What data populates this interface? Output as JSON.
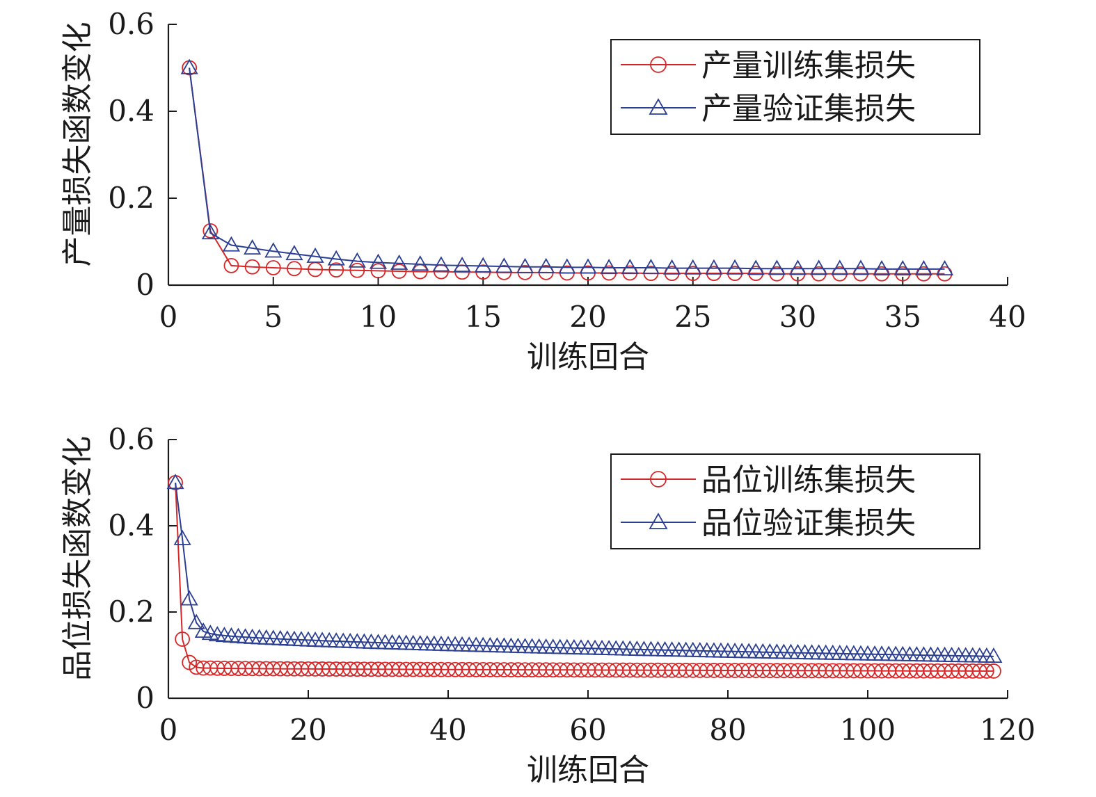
{
  "chart_data": [
    {
      "type": "line",
      "xlabel": "训练回合",
      "ylabel": "产量损失函数变化",
      "xlim": [
        0,
        40
      ],
      "ylim": [
        0,
        0.6
      ],
      "xticks": [
        0,
        5,
        10,
        15,
        20,
        25,
        30,
        35,
        40
      ],
      "yticks": [
        0,
        0.2,
        0.4,
        0.6
      ],
      "ytick_labels": [
        "0",
        "0.2",
        "0.4",
        "0.6"
      ],
      "grid": false,
      "legend_position": "top-right",
      "series": [
        {
          "name": "产量训练集损失",
          "color": "#d62728",
          "marker": "circle",
          "x": [
            1,
            2,
            3,
            4,
            5,
            6,
            7,
            8,
            9,
            10,
            11,
            12,
            13,
            14,
            15,
            16,
            17,
            18,
            19,
            20,
            21,
            22,
            23,
            24,
            25,
            26,
            27,
            28,
            29,
            30,
            31,
            32,
            33,
            34,
            35,
            36,
            37
          ],
          "y": [
            0.5,
            0.125,
            0.045,
            0.042,
            0.04,
            0.038,
            0.036,
            0.035,
            0.034,
            0.033,
            0.032,
            0.031,
            0.031,
            0.03,
            0.03,
            0.029,
            0.029,
            0.029,
            0.028,
            0.028,
            0.028,
            0.028,
            0.027,
            0.027,
            0.027,
            0.027,
            0.027,
            0.027,
            0.026,
            0.026,
            0.026,
            0.026,
            0.026,
            0.026,
            0.026,
            0.026,
            0.026
          ]
        },
        {
          "name": "产量验证集损失",
          "color": "#2b3f93",
          "marker": "triangle",
          "x": [
            1,
            2,
            3,
            4,
            5,
            6,
            7,
            8,
            9,
            10,
            11,
            12,
            13,
            14,
            15,
            16,
            17,
            18,
            19,
            20,
            21,
            22,
            23,
            24,
            25,
            26,
            27,
            28,
            29,
            30,
            31,
            32,
            33,
            34,
            35,
            36,
            37
          ],
          "y": [
            0.5,
            0.12,
            0.092,
            0.085,
            0.078,
            0.072,
            0.066,
            0.06,
            0.055,
            0.052,
            0.05,
            0.048,
            0.046,
            0.045,
            0.044,
            0.043,
            0.042,
            0.042,
            0.041,
            0.041,
            0.04,
            0.04,
            0.04,
            0.039,
            0.039,
            0.039,
            0.039,
            0.038,
            0.038,
            0.038,
            0.038,
            0.038,
            0.038,
            0.037,
            0.037,
            0.037,
            0.037
          ]
        }
      ]
    },
    {
      "type": "line",
      "xlabel": "训练回合",
      "ylabel": "品位损失函数变化",
      "xlim": [
        0,
        120
      ],
      "ylim": [
        0,
        0.6
      ],
      "xticks": [
        0,
        20,
        40,
        60,
        80,
        100,
        120
      ],
      "yticks": [
        0,
        0.2,
        0.4,
        0.6
      ],
      "ytick_labels": [
        "0",
        "0.2",
        "0.4",
        "0.6"
      ],
      "grid": false,
      "legend_position": "top-right",
      "series": [
        {
          "name": "品位训练集损失",
          "color": "#d62728",
          "marker": "circle",
          "x_start": 1,
          "x_end": 118,
          "head": [
            0.5,
            0.137,
            0.083,
            0.072,
            0.07
          ],
          "tail_start": 0.07,
          "tail_end": 0.063
        },
        {
          "name": "品位验证集损失",
          "color": "#2b3f93",
          "marker": "triangle",
          "x_start": 1,
          "x_end": 118,
          "head": [
            0.5,
            0.37,
            0.23,
            0.175,
            0.155
          ],
          "tail_start": 0.15,
          "tail_end": 0.097
        }
      ]
    }
  ]
}
